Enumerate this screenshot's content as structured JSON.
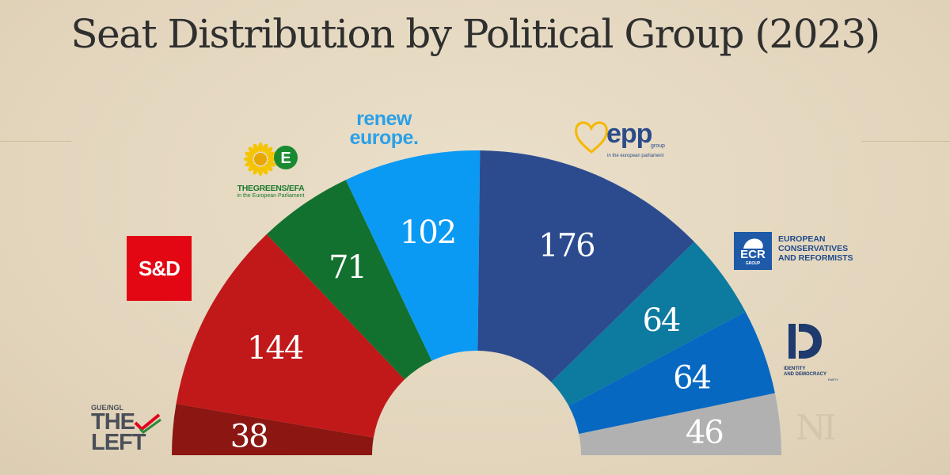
{
  "title": "Seat Distribution by Political Group (2023)",
  "chart_data": {
    "type": "pie",
    "subtype": "parliament-semicircle",
    "title": "Seat Distribution by Political Group (2023)",
    "order": "left-to-right",
    "categories": [
      "GUE/NGL THE LEFT",
      "S&D",
      "THE GREENS/EFA",
      "renew europe.",
      "epp group",
      "ECR GROUP",
      "IDENTITY AND DEMOCRACY PARTY",
      "NI"
    ],
    "values": [
      38,
      144,
      71,
      102,
      176,
      64,
      64,
      46
    ],
    "colors": [
      "#8b1612",
      "#c1181a",
      "#13712f",
      "#0a9af4",
      "#2c4b8f",
      "#0d7aa0",
      "#0768c2",
      "#b1b1b1"
    ],
    "labels": [
      "38",
      "144",
      "71",
      "102",
      "176",
      "64",
      "64",
      "46"
    ]
  },
  "logos": {
    "left": {
      "small": "GUE/NGL",
      "line1": "THE",
      "line2": "LEFT",
      "color": "#e3001b"
    },
    "sd": {
      "text": "S&D",
      "color": "#e30613"
    },
    "greens": {
      "line1": "THEGREENS/EFA",
      "line2": "in the European Parliament",
      "color": "#1a7a2f",
      "sun": "#f5c400"
    },
    "renew": {
      "line1": "renew",
      "line2": "europe.",
      "color": "#2ba0e8"
    },
    "epp": {
      "main": "epp",
      "group": "group",
      "sub": "in the european parliament",
      "color": "#2b4c8a",
      "heart": "#f5b800"
    },
    "ecr": {
      "box": "ECR",
      "box_sub": "GROUP",
      "line1": "EUROPEAN",
      "line2": "CONSERVATIVES",
      "line3": "AND REFORMISTS",
      "color": "#1e5aa8"
    },
    "id": {
      "line1": "IDENTITY",
      "line2": "AND DEMOCRACY",
      "line3": "PARTY",
      "color": "#1e3a6e"
    },
    "ni": {
      "text": "NI"
    }
  }
}
